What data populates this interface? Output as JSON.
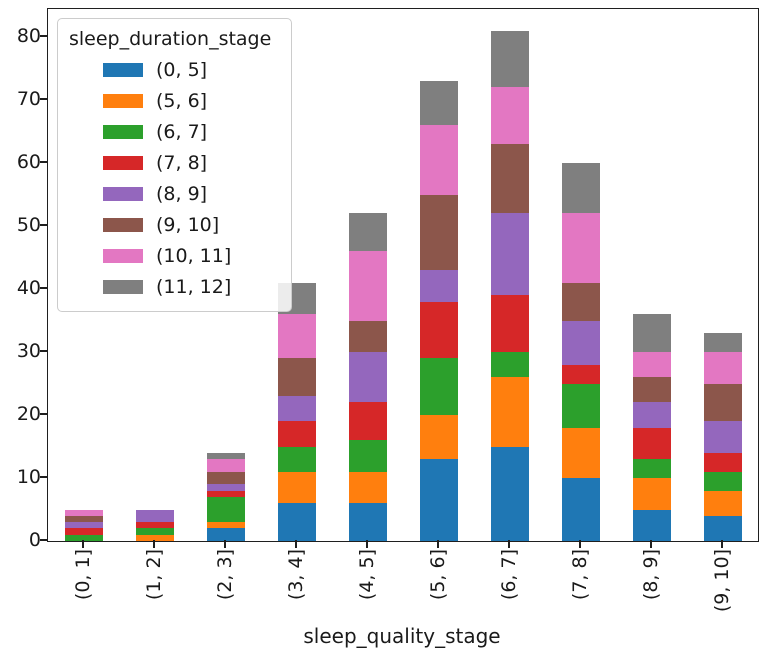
{
  "chart_data": {
    "type": "bar",
    "stacked": true,
    "title": "",
    "xlabel": "sleep_quality_stage",
    "ylabel": "",
    "categories": [
      "(0, 1]",
      "(1, 2]",
      "(2, 3]",
      "(3, 4]",
      "(4, 5]",
      "(5, 6]",
      "(6, 7]",
      "(7, 8]",
      "(8, 9]",
      "(9, 10]"
    ],
    "series": [
      {
        "name": "(0, 5]",
        "color": "#1f77b4",
        "values": [
          0,
          0,
          2,
          6,
          6,
          13,
          15,
          10,
          5,
          4
        ]
      },
      {
        "name": "(5, 6]",
        "color": "#ff7f0e",
        "values": [
          0,
          1,
          1,
          5,
          5,
          7,
          11,
          8,
          5,
          4
        ]
      },
      {
        "name": "(6, 7]",
        "color": "#2ca02c",
        "values": [
          1,
          1,
          4,
          4,
          5,
          9,
          4,
          7,
          3,
          3
        ]
      },
      {
        "name": "(7, 8]",
        "color": "#d62728",
        "values": [
          1,
          1,
          1,
          4,
          6,
          9,
          9,
          3,
          5,
          3
        ]
      },
      {
        "name": "(8, 9]",
        "color": "#9467bd",
        "values": [
          1,
          2,
          1,
          4,
          8,
          5,
          13,
          7,
          4,
          5
        ]
      },
      {
        "name": "(9, 10]",
        "color": "#8c564b",
        "values": [
          1,
          0,
          2,
          6,
          5,
          12,
          11,
          6,
          4,
          6
        ]
      },
      {
        "name": "(10, 11]",
        "color": "#e377c2",
        "values": [
          1,
          0,
          2,
          7,
          11,
          11,
          9,
          11,
          4,
          5
        ]
      },
      {
        "name": "(11, 12]",
        "color": "#7f7f7f",
        "values": [
          0,
          0,
          1,
          5,
          6,
          7,
          9,
          8,
          6,
          3
        ]
      }
    ],
    "bar_totals": [
      5,
      5,
      14,
      41,
      52,
      73,
      81,
      60,
      36,
      33
    ],
    "legend_title": "sleep_duration_stage",
    "legend_position": "upper left",
    "yticks": [
      0,
      10,
      20,
      30,
      40,
      50,
      60,
      70,
      80
    ],
    "ylim": [
      0,
      84.5
    ],
    "grid": false
  }
}
